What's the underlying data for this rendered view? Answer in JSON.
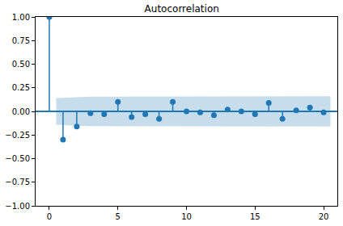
{
  "chart_data": {
    "type": "stem",
    "title": "Autocorrelation",
    "x": [
      0,
      1,
      2,
      3,
      4,
      5,
      6,
      7,
      8,
      9,
      10,
      11,
      12,
      13,
      14,
      15,
      16,
      17,
      18,
      19,
      20
    ],
    "values": [
      1.0,
      -0.3,
      -0.16,
      -0.02,
      -0.03,
      0.1,
      -0.06,
      -0.03,
      -0.08,
      0.1,
      0.0,
      -0.01,
      -0.04,
      0.02,
      0.0,
      -0.03,
      0.09,
      -0.08,
      0.01,
      0.04,
      -0.01
    ],
    "color": "#1f77b4",
    "confidence_band": {
      "x": [
        1,
        2,
        3,
        4,
        5,
        6,
        7,
        8,
        9,
        10,
        11,
        12,
        13,
        14,
        15,
        16,
        17,
        18,
        19,
        20
      ],
      "values": [
        0.14,
        0.152,
        0.155,
        0.155,
        0.155,
        0.157,
        0.157,
        0.157,
        0.158,
        0.16,
        0.16,
        0.16,
        0.16,
        0.16,
        0.16,
        0.16,
        0.161,
        0.161,
        0.161,
        0.161
      ]
    },
    "xlim": [
      -1,
      21
    ],
    "xticks": [
      0,
      5,
      10,
      15,
      20
    ],
    "ylim": [
      -1,
      1
    ],
    "yticks": [
      {
        "value": -1,
        "label": "−1.00"
      },
      {
        "value": -0.75,
        "label": "−0.75"
      },
      {
        "value": -0.5,
        "label": "−0.50"
      },
      {
        "value": -0.25,
        "label": "−0.25"
      },
      {
        "value": 0,
        "label": "0.00"
      },
      {
        "value": 0.25,
        "label": "0.25"
      },
      {
        "value": 0.5,
        "label": "0.50"
      },
      {
        "value": 0.75,
        "label": "0.75"
      },
      {
        "value": 1,
        "label": "1.00"
      }
    ],
    "grid": false
  }
}
